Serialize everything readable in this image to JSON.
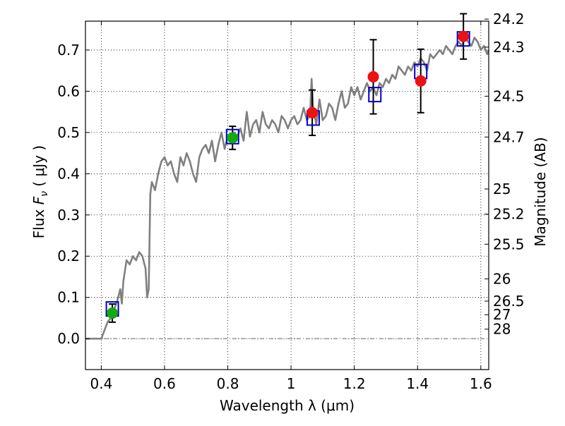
{
  "chart_data": {
    "type": "scatter",
    "xlabel": "Wavelength  λ (μm)",
    "ylabel": "Flux  F_ν  ( μJy )",
    "ylabel_parts": {
      "prefix": "Flux  ",
      "symbol": "F",
      "subscript": "ν",
      "suffix": "  ( μJy )"
    },
    "y2label": "Magnitude (AB)",
    "xlim": [
      0.35,
      1.625
    ],
    "ylim": [
      -0.075,
      0.77
    ],
    "grid": true,
    "x_ticks": [
      0.4,
      0.6,
      0.8,
      1.0,
      1.2,
      1.4,
      1.6
    ],
    "x_tick_labels": [
      "0.4",
      "0.6",
      "0.8",
      "1",
      "1.2",
      "1.4",
      "1.6"
    ],
    "y_ticks": [
      0.0,
      0.1,
      0.2,
      0.3,
      0.4,
      0.5,
      0.6,
      0.7
    ],
    "y_tick_labels": [
      "0.0",
      "0.1",
      "0.2",
      "0.3",
      "0.4",
      "0.5",
      "0.6",
      "0.7"
    ],
    "mag_ticks": [
      {
        "label": "24.2",
        "flux": 0.775
      },
      {
        "label": "24.3",
        "flux": 0.707
      },
      {
        "label": "24.5",
        "flux": 0.588
      },
      {
        "label": "24.7",
        "flux": 0.489
      },
      {
        "label": "25",
        "flux": 0.363
      },
      {
        "label": "25.2",
        "flux": 0.302
      },
      {
        "label": "25.5",
        "flux": 0.229
      },
      {
        "label": "26",
        "flux": 0.145
      },
      {
        "label": "26.5",
        "flux": 0.091
      },
      {
        "label": "27",
        "flux": 0.058
      },
      {
        "label": "28",
        "flux": 0.023
      }
    ],
    "model_spectrum": {
      "color": "#808080",
      "x": [
        0.35,
        0.4,
        0.42,
        0.43,
        0.44,
        0.45,
        0.46,
        0.465,
        0.47,
        0.48,
        0.49,
        0.5,
        0.51,
        0.52,
        0.53,
        0.54,
        0.545,
        0.55,
        0.555,
        0.56,
        0.57,
        0.58,
        0.59,
        0.6,
        0.61,
        0.62,
        0.63,
        0.64,
        0.65,
        0.66,
        0.67,
        0.68,
        0.69,
        0.7,
        0.71,
        0.72,
        0.73,
        0.74,
        0.75,
        0.76,
        0.77,
        0.78,
        0.79,
        0.8,
        0.81,
        0.82,
        0.83,
        0.84,
        0.85,
        0.86,
        0.87,
        0.88,
        0.89,
        0.9,
        0.91,
        0.92,
        0.93,
        0.94,
        0.95,
        0.96,
        0.97,
        0.98,
        0.99,
        1.0,
        1.01,
        1.02,
        1.03,
        1.04,
        1.05,
        1.06,
        1.065,
        1.07,
        1.08,
        1.09,
        1.1,
        1.11,
        1.12,
        1.13,
        1.14,
        1.15,
        1.16,
        1.17,
        1.18,
        1.19,
        1.2,
        1.21,
        1.22,
        1.23,
        1.24,
        1.25,
        1.26,
        1.27,
        1.28,
        1.29,
        1.3,
        1.31,
        1.32,
        1.33,
        1.34,
        1.35,
        1.36,
        1.37,
        1.38,
        1.39,
        1.4,
        1.41,
        1.42,
        1.43,
        1.44,
        1.45,
        1.46,
        1.47,
        1.48,
        1.49,
        1.5,
        1.51,
        1.52,
        1.53,
        1.54,
        1.55,
        1.56,
        1.57,
        1.58,
        1.59,
        1.6,
        1.61,
        1.62,
        1.625
      ],
      "y": [
        0.0,
        0.0,
        0.04,
        0.05,
        0.07,
        0.09,
        0.12,
        0.085,
        0.14,
        0.19,
        0.18,
        0.2,
        0.19,
        0.21,
        0.2,
        0.17,
        0.1,
        0.12,
        0.35,
        0.38,
        0.36,
        0.4,
        0.43,
        0.44,
        0.42,
        0.43,
        0.4,
        0.38,
        0.44,
        0.42,
        0.45,
        0.43,
        0.4,
        0.38,
        0.44,
        0.46,
        0.47,
        0.45,
        0.48,
        0.43,
        0.47,
        0.5,
        0.46,
        0.49,
        0.48,
        0.5,
        0.49,
        0.51,
        0.48,
        0.55,
        0.49,
        0.52,
        0.53,
        0.5,
        0.55,
        0.52,
        0.51,
        0.53,
        0.52,
        0.5,
        0.54,
        0.53,
        0.51,
        0.53,
        0.54,
        0.52,
        0.53,
        0.56,
        0.53,
        0.54,
        0.63,
        0.56,
        0.52,
        0.58,
        0.53,
        0.54,
        0.57,
        0.56,
        0.53,
        0.57,
        0.6,
        0.56,
        0.57,
        0.61,
        0.59,
        0.61,
        0.58,
        0.6,
        0.62,
        0.6,
        0.61,
        0.59,
        0.62,
        0.61,
        0.63,
        0.62,
        0.64,
        0.63,
        0.66,
        0.65,
        0.64,
        0.66,
        0.65,
        0.67,
        0.66,
        0.68,
        0.67,
        0.65,
        0.69,
        0.68,
        0.69,
        0.7,
        0.69,
        0.71,
        0.7,
        0.69,
        0.71,
        0.72,
        0.71,
        0.73,
        0.72,
        0.71,
        0.73,
        0.72,
        0.7,
        0.71,
        0.69,
        0.7
      ]
    },
    "model_points": {
      "color": "#0000cc",
      "marker": "open-square",
      "x": [
        0.435,
        0.815,
        1.07,
        1.265,
        1.41,
        1.545
      ],
      "y": [
        0.072,
        0.49,
        0.535,
        0.592,
        0.648,
        0.727
      ]
    },
    "observed_points": [
      {
        "x": 0.435,
        "y": 0.062,
        "err": 0.022,
        "color": "#11aa11"
      },
      {
        "x": 0.815,
        "y": 0.487,
        "err": 0.028,
        "color": "#11aa11"
      },
      {
        "x": 1.067,
        "y": 0.548,
        "err": 0.055,
        "color": "#ee1111"
      },
      {
        "x": 1.26,
        "y": 0.635,
        "err": 0.09,
        "color": "#ee1111"
      },
      {
        "x": 1.41,
        "y": 0.625,
        "err": 0.077,
        "color": "#ee1111"
      },
      {
        "x": 1.545,
        "y": 0.733,
        "err": 0.055,
        "color": "#ee1111"
      }
    ]
  }
}
